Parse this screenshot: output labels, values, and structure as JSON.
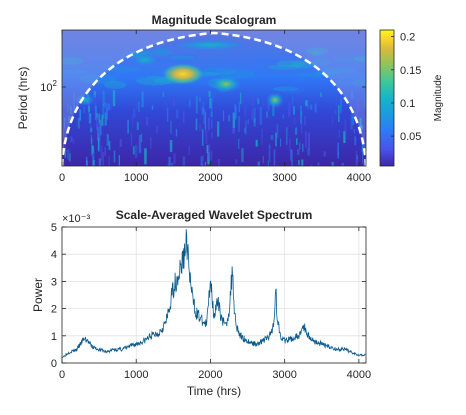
{
  "colors": {
    "line": "#0a5a8c",
    "grid": "#e2e2e2",
    "coi": "#ffffff",
    "colormap": [
      "#3d26a8",
      "#4a52e8",
      "#2f78f5",
      "#1e98e0",
      "#16b5c8",
      "#3fc79a",
      "#8cc45f",
      "#d7ba3c",
      "#fbd62a",
      "#f9fb15"
    ]
  },
  "chart_data": [
    {
      "type": "heatmap",
      "title": "Magnitude Scalogram",
      "ylabel": "Period (hrs)",
      "xlabel": "",
      "xlim": [
        0,
        4096
      ],
      "x_ticks": [
        0,
        1000,
        2000,
        3000,
        4000
      ],
      "y_scale": "log",
      "y_tick_labels": [
        "10^2"
      ],
      "y_tick_value": 100,
      "cone_of_influence": "dashed-white",
      "colorbar": {
        "label": "Magnitude",
        "range": [
          0.005,
          0.21
        ],
        "ticks": [
          0.05,
          0.1,
          0.15,
          0.2
        ],
        "tick_labels": [
          "0.05",
          "0.1",
          "0.15",
          "0.2"
        ]
      },
      "features": [
        {
          "x": 1650,
          "period": 128,
          "magnitude": 0.21
        },
        {
          "x": 2250,
          "period": 100,
          "magnitude": 0.12
        },
        {
          "x": 2900,
          "period": 80,
          "magnitude": 0.14
        },
        {
          "x": 1150,
          "period": 200,
          "magnitude": 0.1
        }
      ]
    },
    {
      "type": "line",
      "title": "Scale-Averaged Wavelet Spectrum",
      "xlabel": "Time (hrs)",
      "ylabel": "Power",
      "y_multiplier": "×10⁻³",
      "xlim": [
        0,
        4096
      ],
      "ylim": [
        0,
        5
      ],
      "x_ticks": [
        0,
        1000,
        2000,
        3000,
        4000
      ],
      "y_ticks": [
        0,
        1,
        2,
        3,
        4,
        5
      ],
      "grid": true,
      "x": [
        0,
        100,
        200,
        300,
        350,
        400,
        500,
        600,
        700,
        800,
        900,
        1000,
        1100,
        1200,
        1300,
        1400,
        1450,
        1500,
        1550,
        1600,
        1650,
        1680,
        1700,
        1750,
        1800,
        1850,
        1900,
        1950,
        2000,
        2030,
        2050,
        2100,
        2150,
        2200,
        2250,
        2300,
        2320,
        2350,
        2400,
        2500,
        2600,
        2700,
        2800,
        2850,
        2880,
        2900,
        2950,
        3000,
        3100,
        3200,
        3250,
        3300,
        3350,
        3400,
        3500,
        3600,
        3700,
        3800,
        3900,
        4000,
        4096
      ],
      "y": [
        0.2,
        0.4,
        0.5,
        0.9,
        0.8,
        0.6,
        0.5,
        0.4,
        0.5,
        0.5,
        0.6,
        0.7,
        0.8,
        1.0,
        1.1,
        1.5,
        2.0,
        2.8,
        3.1,
        3.5,
        4.0,
        4.6,
        3.8,
        2.5,
        1.9,
        1.7,
        1.5,
        1.4,
        3.2,
        2.2,
        1.8,
        2.2,
        1.7,
        1.3,
        1.9,
        3.5,
        2.0,
        1.4,
        1.0,
        0.8,
        0.7,
        0.8,
        1.0,
        1.4,
        2.8,
        1.6,
        1.0,
        0.8,
        0.9,
        1.0,
        1.4,
        1.1,
        0.9,
        0.8,
        0.7,
        0.6,
        0.5,
        0.5,
        0.4,
        0.3,
        0.3
      ]
    }
  ]
}
